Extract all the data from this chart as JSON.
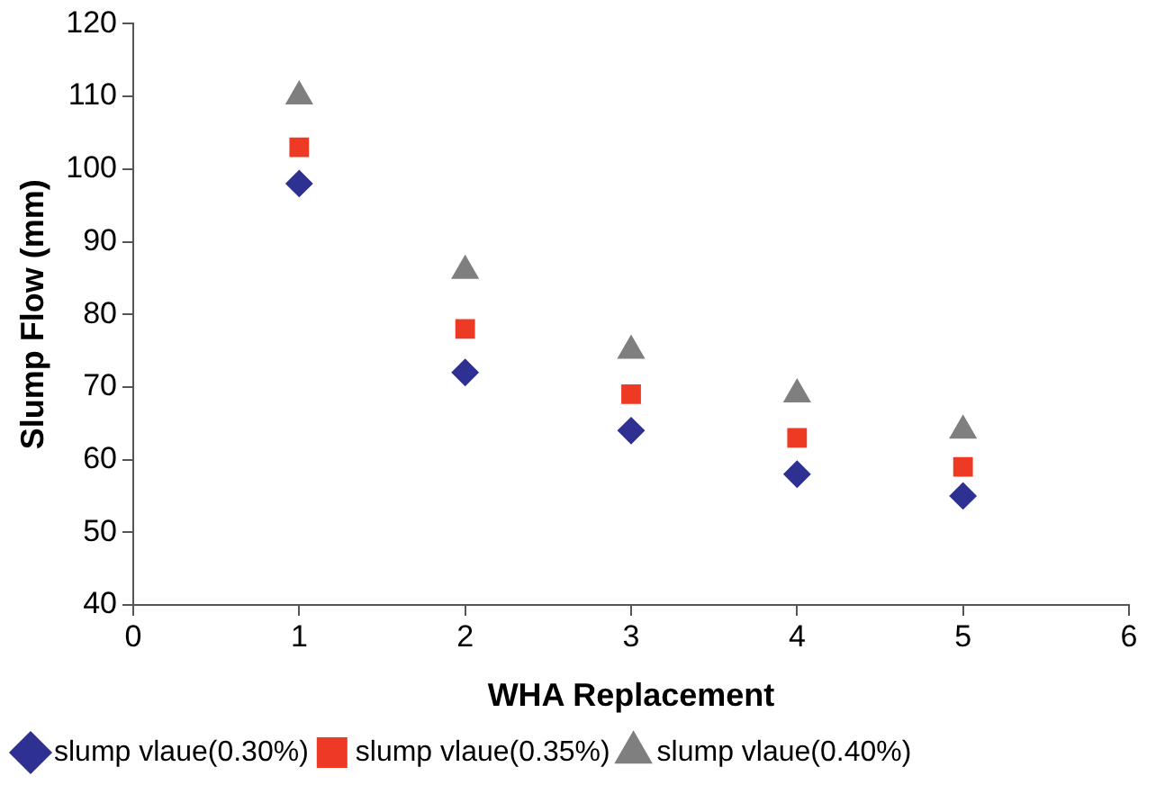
{
  "chart_data": {
    "type": "scatter",
    "xlabel": "WHA Replacement",
    "ylabel": "Slump Flow (mm)",
    "x": [
      1,
      2,
      3,
      4,
      5
    ],
    "series": [
      {
        "name": "slump vlaue(0.30%)",
        "color": "#2e3192",
        "marker": "diamond",
        "values": [
          98,
          72,
          64,
          58,
          55
        ]
      },
      {
        "name": "slump vlaue(0.35%)",
        "color": "#ee3a24",
        "marker": "square",
        "values": [
          103,
          78,
          69,
          63,
          59
        ]
      },
      {
        "name": "slump vlaue(0.40%)",
        "color": "#7f7f7f",
        "marker": "triangle",
        "values": [
          110,
          86,
          75,
          69,
          64
        ]
      }
    ],
    "xlim": [
      0,
      6
    ],
    "xticks": [
      0,
      1,
      2,
      3,
      4,
      5,
      6
    ],
    "ylim": [
      40,
      120
    ],
    "yticks": [
      40,
      50,
      60,
      70,
      80,
      90,
      100,
      110,
      120
    ],
    "grid": false,
    "legend": "bottom"
  }
}
